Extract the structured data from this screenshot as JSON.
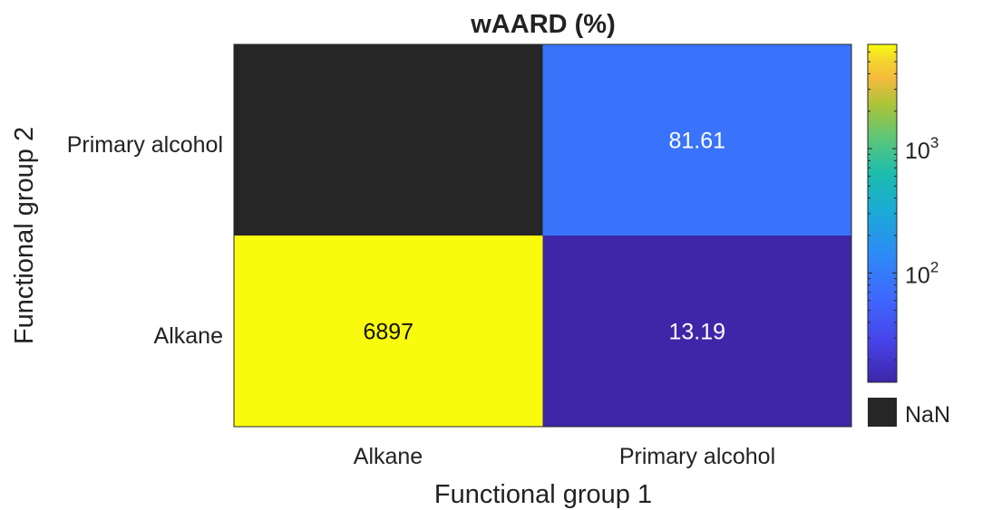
{
  "chart_data": {
    "type": "heatmap",
    "title": "wAARD (%)",
    "xlabel": "Functional group 1",
    "ylabel": "Functional group 2",
    "x_categories": [
      "Alkane",
      "Primary alcohol"
    ],
    "y_categories": [
      "Primary alcohol",
      "Alkane"
    ],
    "cells": [
      {
        "x": "Alkane",
        "y": "Primary alcohol",
        "value": null,
        "label": ""
      },
      {
        "x": "Primary alcohol",
        "y": "Primary alcohol",
        "value": 81.61,
        "label": "81.61"
      },
      {
        "x": "Alkane",
        "y": "Alkane",
        "value": 6897,
        "label": "6897"
      },
      {
        "x": "Primary alcohol",
        "y": "Alkane",
        "value": 13.19,
        "label": "13.19"
      }
    ],
    "colorbar": {
      "scale": "log",
      "range": [
        13.19,
        6897
      ],
      "colormap": "parula",
      "ticks": [
        {
          "value": 100,
          "base": "10",
          "exponent": "2"
        },
        {
          "value": 1000,
          "base": "10",
          "exponent": "3"
        }
      ],
      "nan_label": "NaN",
      "nan_color": "#262626"
    },
    "colors": {
      "nan": "#262626",
      "label_light": "#ffffff",
      "label_dark": "#111111"
    }
  }
}
